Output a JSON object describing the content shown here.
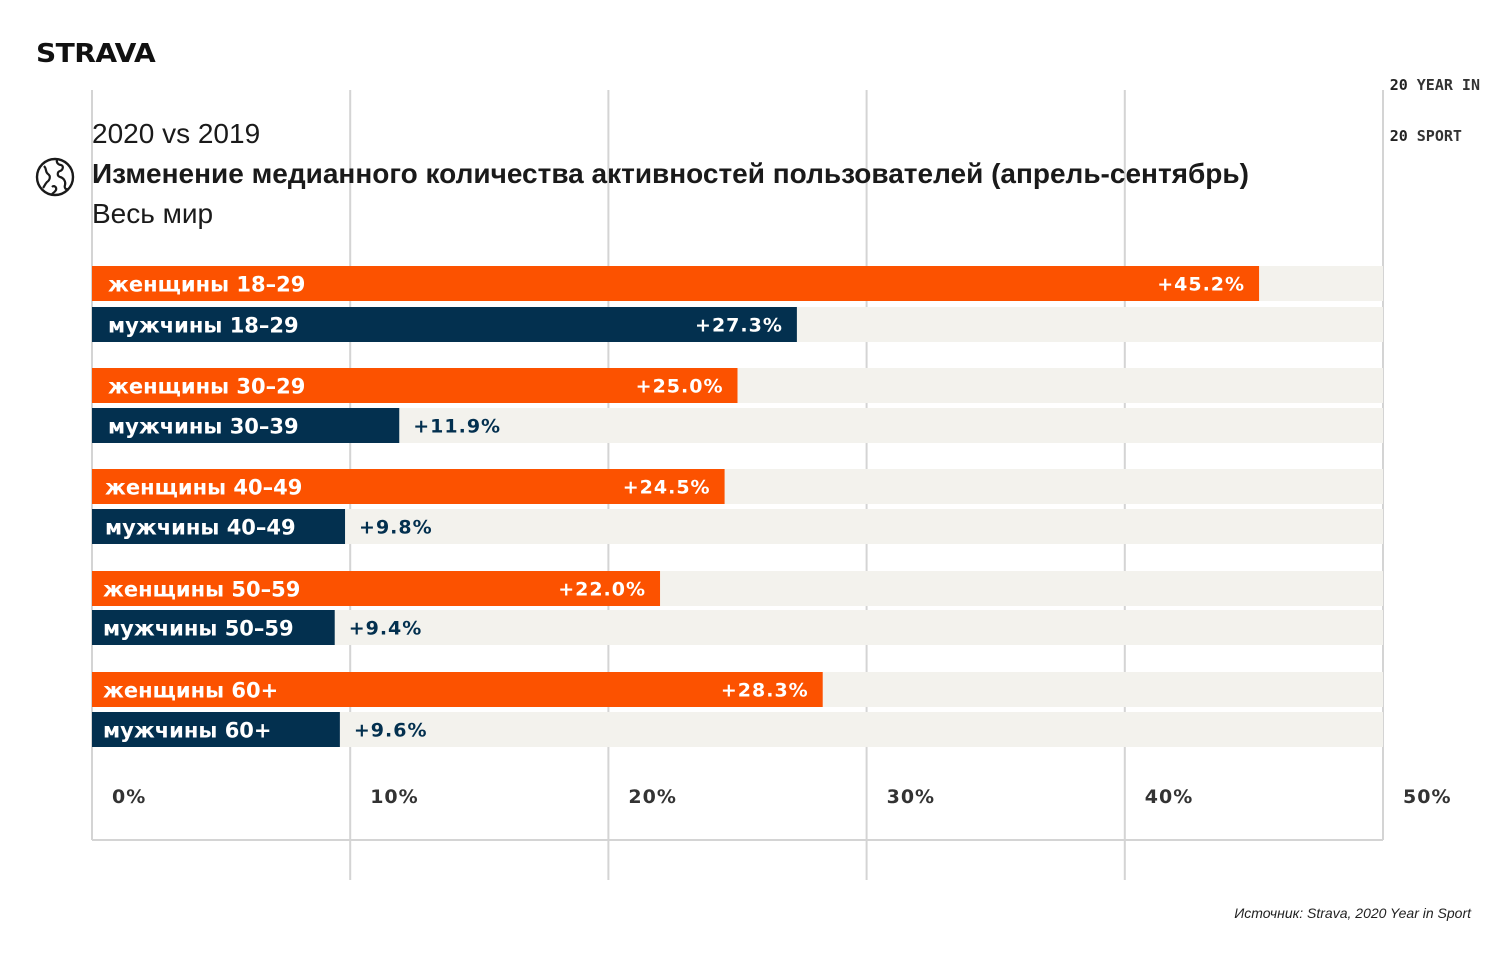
{
  "brand": {
    "logo_text": "STRAVA",
    "year_in_sport": [
      "20",
      "YEAR IN",
      "20",
      "SPORT"
    ]
  },
  "header": {
    "subtitle_top": "2020 vs 2019",
    "title": "Изменение медианного количества активностей пользователей (апрель-сентябрь)",
    "subtitle_bottom": "Весь мир"
  },
  "footer": {
    "source": "Источник: Strava, 2020 Year in Sport"
  },
  "colors": {
    "women": "#fc5200",
    "men": "#03304f",
    "track": "#f3f2ed",
    "grid": "#d4d4d4",
    "tick_text": "#333333"
  },
  "icons": {
    "title_icon": "globe-icon"
  },
  "chart_data": {
    "type": "bar",
    "orientation": "horizontal",
    "xlim": [
      0,
      50
    ],
    "grid": true,
    "x_ticks": [
      "0%",
      "10%",
      "20%",
      "30%",
      "40%",
      "50%"
    ],
    "categories": [
      "женщины 18–29",
      "мужчины 18–29",
      "женщины 30–29",
      "мужчины 30–39",
      "женщины 40–49",
      "мужчины 40–49",
      "женщины 50–59",
      "мужчины 50–59",
      "женщины 60+",
      "мужчины 60+"
    ],
    "values": [
      45.2,
      27.3,
      25.0,
      11.9,
      24.5,
      9.8,
      22.0,
      9.4,
      28.3,
      9.6
    ],
    "value_labels": [
      "+45.2%",
      "+27.3%",
      "+25.0%",
      "+11.9%",
      "+24.5%",
      "+9.8%",
      "+22.0%",
      "+9.4%",
      "+28.3%",
      "+9.6%"
    ],
    "groups": [
      "women",
      "men",
      "women",
      "men",
      "women",
      "men",
      "women",
      "men",
      "women",
      "men"
    ]
  }
}
